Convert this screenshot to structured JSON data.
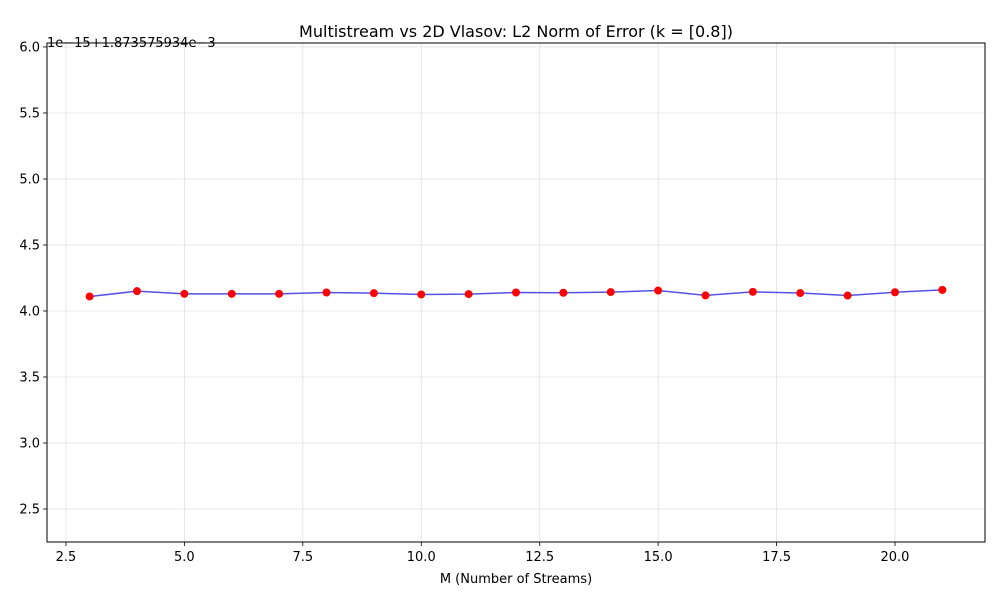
{
  "chart_data": {
    "type": "line",
    "title": "Multistream vs 2D Vlasov: L2 Norm of Error (k = [0.8])",
    "xlabel": "M (Number of Streams)",
    "ylabel": "",
    "y_offset_label": "1e−15+1.873575934e−3",
    "xlim": [
      2.1,
      21.9
    ],
    "ylim": [
      2.25,
      6.03
    ],
    "x_ticks": [
      2.5,
      5.0,
      7.5,
      10.0,
      12.5,
      15.0,
      17.5,
      20.0
    ],
    "x_tick_labels": [
      "2.5",
      "5.0",
      "7.5",
      "10.0",
      "12.5",
      "15.0",
      "17.5",
      "20.0"
    ],
    "y_ticks": [
      2.5,
      3.0,
      3.5,
      4.0,
      4.5,
      5.0,
      5.5,
      6.0
    ],
    "y_tick_labels": [
      "2.5",
      "3.0",
      "3.5",
      "4.0",
      "4.5",
      "5.0",
      "5.5",
      "6.0"
    ],
    "grid": true,
    "series": [
      {
        "x": [
          3,
          4,
          5,
          6,
          7,
          8,
          9,
          10,
          11,
          12,
          13,
          14,
          15,
          16,
          17,
          18,
          19,
          20,
          21
        ],
        "values": [
          4.11,
          4.15,
          4.13,
          4.13,
          4.13,
          4.14,
          4.135,
          4.125,
          4.128,
          4.14,
          4.138,
          4.143,
          4.155,
          4.118,
          4.145,
          4.136,
          4.117,
          4.142,
          4.16
        ],
        "line_color": "#4040e0",
        "marker_color": "#ff0000"
      }
    ]
  }
}
